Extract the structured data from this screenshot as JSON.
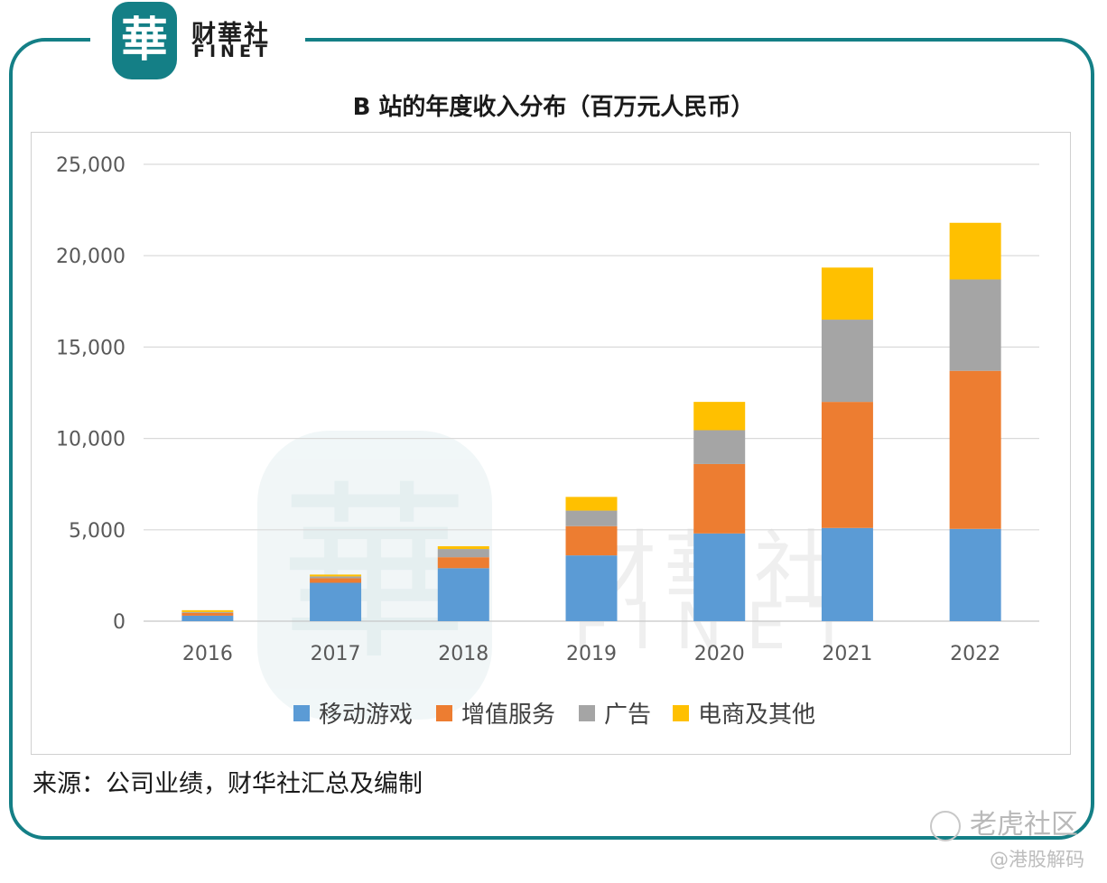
{
  "brand": {
    "seal_char": "華",
    "name_cn": "财華社",
    "name_en": "FINET"
  },
  "colors": {
    "frame": "#147f86",
    "mobile_games": "#5b9bd5",
    "vas": "#ed7d31",
    "ads": "#a5a5a5",
    "ecommerce": "#ffc000"
  },
  "chart_data": {
    "type": "bar",
    "stacked": true,
    "title": "B 站的年度收入分布（百万元人民币）",
    "xlabel": "",
    "ylabel": "",
    "categories": [
      "2016",
      "2017",
      "2018",
      "2019",
      "2020",
      "2021",
      "2022"
    ],
    "ylim": [
      0,
      25000
    ],
    "yticks": [
      0,
      5000,
      10000,
      15000,
      20000,
      25000
    ],
    "ytick_labels": [
      "0",
      "5,000",
      "10,000",
      "15,000",
      "20,000",
      "25,000"
    ],
    "series": [
      {
        "name": "移动游戏",
        "color": "#5b9bd5",
        "values": [
          300,
          2100,
          2900,
          3600,
          4800,
          5100,
          5050
        ]
      },
      {
        "name": "增值服务",
        "color": "#ed7d31",
        "values": [
          150,
          250,
          600,
          1600,
          3800,
          6900,
          8650
        ]
      },
      {
        "name": "广告",
        "color": "#a5a5a5",
        "values": [
          50,
          100,
          450,
          850,
          1850,
          4500,
          5000
        ]
      },
      {
        "name": "电商及其他",
        "color": "#ffc000",
        "values": [
          100,
          100,
          150,
          750,
          1550,
          2850,
          3100
        ]
      }
    ],
    "legend_position": "bottom",
    "grid": true
  },
  "footer": {
    "source": "来源：公司业绩，财华社汇总及编制",
    "watermark_1": "老虎社区",
    "watermark_2": "@港股解码"
  }
}
